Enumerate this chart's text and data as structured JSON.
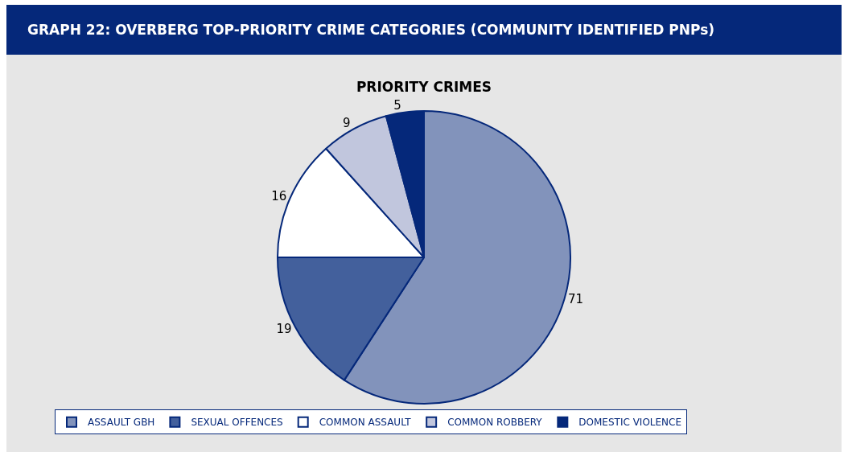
{
  "chart_data": {
    "type": "pie",
    "title": "GRAPH 22: OVERBERG TOP-PRIORITY CRIME CATEGORIES (COMMUNITY IDENTIFIED PNPs)",
    "subtitle": "PRIORITY CRIMES",
    "categories": [
      "ASSAULT GBH",
      "SEXUAL OFFENCES",
      "COMMON ASSAULT",
      "COMMON ROBBERY",
      "DOMESTIC VIOLENCE"
    ],
    "values": [
      71,
      19,
      16,
      9,
      5
    ],
    "colors": [
      "#8293bb",
      "#43609c",
      "#ffffff",
      "#c1c6dd",
      "#05287a"
    ],
    "data_labels": true,
    "legend": "bottom"
  }
}
